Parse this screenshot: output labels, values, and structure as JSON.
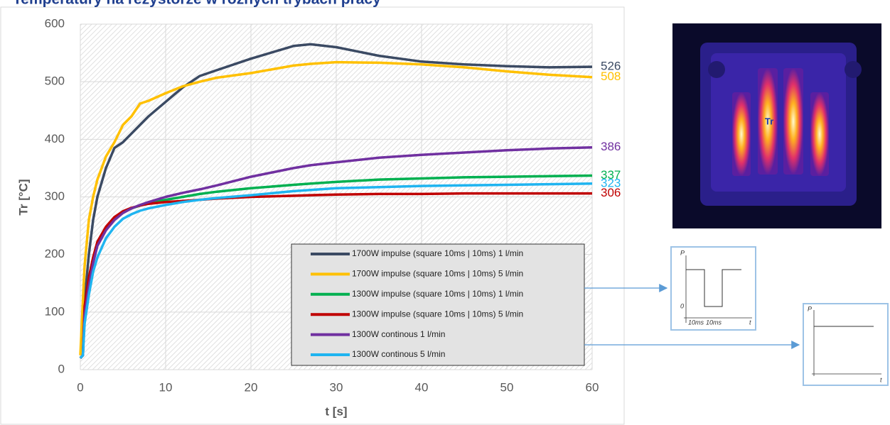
{
  "chart_data": {
    "type": "line",
    "title": "Temperatury na rezystorze w różnych trybach pracy",
    "x_label": "t [s]",
    "y_label": "Tr [°C]",
    "x": [
      0,
      0.3,
      0.5,
      1,
      1.5,
      2,
      3,
      4,
      5,
      6,
      7,
      8,
      10,
      12,
      14,
      16,
      20,
      25,
      27,
      30,
      35,
      40,
      45,
      50,
      55,
      60
    ],
    "series": [
      {
        "name": "1700W impulse (square 10ms | 10ms) 1 l/min",
        "color": "#3b4a63",
        "values": [
          20,
          25,
          120,
          200,
          260,
          300,
          350,
          385,
          395,
          410,
          425,
          440,
          465,
          490,
          510,
          520,
          540,
          562,
          565,
          560,
          545,
          535,
          530,
          527,
          525,
          526
        ]
      },
      {
        "name": "1700W impulse (square 10ms | 10ms) 5 l/min",
        "color": "#ffc000",
        "values": [
          25,
          120,
          180,
          260,
          300,
          330,
          370,
          395,
          425,
          440,
          462,
          467,
          480,
          492,
          500,
          507,
          515,
          528,
          531,
          534,
          533,
          530,
          525,
          518,
          512,
          508
        ]
      },
      {
        "name": "1300W impulse (square 10ms | 10ms) 1 l/min",
        "color": "#00b050",
        "values": [
          20,
          25,
          100,
          150,
          190,
          220,
          245,
          262,
          273,
          280,
          285,
          289,
          295,
          300,
          305,
          309,
          315,
          321,
          323,
          326,
          330,
          332,
          334,
          335,
          336,
          337
        ]
      },
      {
        "name": "1300W impulse (square 10ms | 10ms) 5 l/min",
        "color": "#c00000",
        "values": [
          20,
          25,
          110,
          160,
          195,
          222,
          248,
          265,
          275,
          281,
          285,
          288,
          291,
          293,
          295,
          297,
          300,
          302,
          303,
          304,
          305,
          305,
          306,
          306,
          306,
          306
        ]
      },
      {
        "name": "1300W continous 1 l/min",
        "color": "#7030a0",
        "values": [
          20,
          25,
          95,
          145,
          185,
          215,
          242,
          260,
          272,
          280,
          286,
          291,
          300,
          307,
          313,
          320,
          335,
          350,
          355,
          360,
          368,
          373,
          377,
          381,
          384,
          386
        ]
      },
      {
        "name": "1300W continous 5 l/min",
        "color": "#1fb4f0",
        "values": [
          20,
          25,
          80,
          130,
          170,
          195,
          228,
          248,
          262,
          270,
          276,
          280,
          286,
          291,
          295,
          298,
          303,
          310,
          312,
          315,
          317,
          319,
          320,
          321,
          322,
          323
        ]
      }
    ],
    "xlim": [
      0,
      60
    ],
    "ylim": [
      0,
      600
    ],
    "xticks": [
      0,
      10,
      20,
      30,
      40,
      50,
      60
    ],
    "yticks": [
      0,
      100,
      200,
      300,
      400,
      500,
      600
    ],
    "grid": true
  },
  "thermal_image": {
    "marker_label": "Tr"
  },
  "insets": [
    {
      "y_label": "P",
      "zero_label": "0",
      "x_marks": [
        "10ms",
        "10ms"
      ],
      "x_label": "t"
    },
    {
      "y_label": "P",
      "x_label": "t"
    }
  ]
}
